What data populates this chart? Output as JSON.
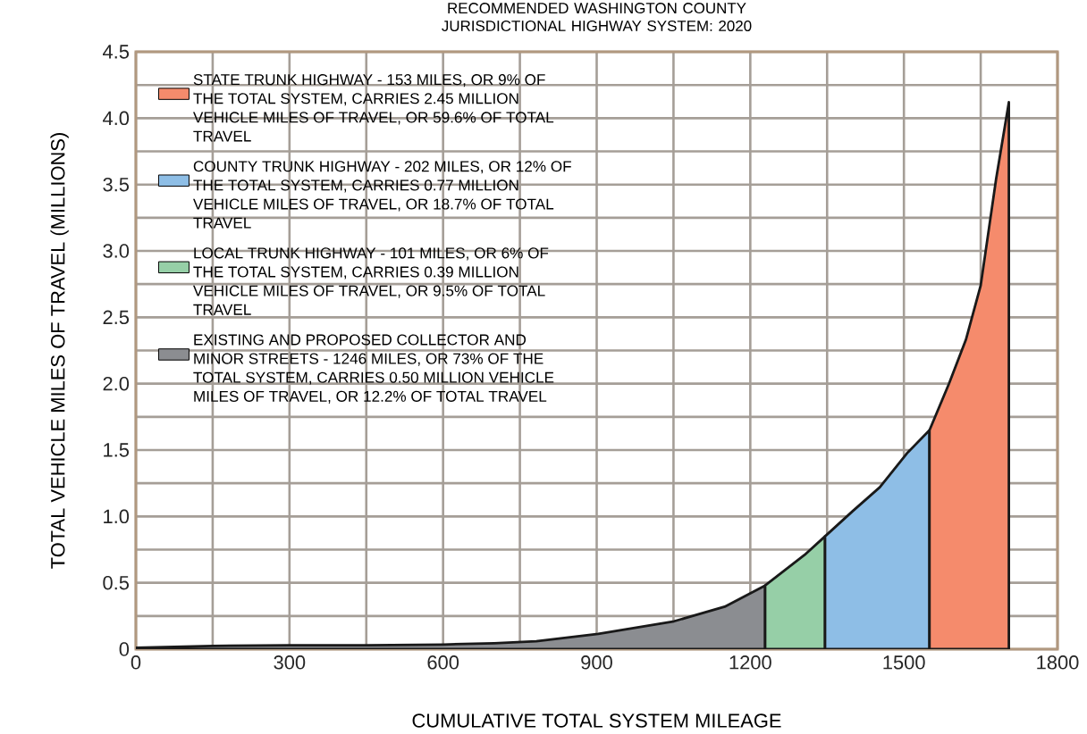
{
  "chart_data": {
    "type": "area",
    "title": "RECOMMENDED WASHINGTON COUNTY JURISDICTIONAL HIGHWAY SYSTEM: 2020",
    "xlabel": "CUMULATIVE TOTAL SYSTEM MILEAGE",
    "ylabel": "TOTAL VEHICLE MILES OF TRAVEL (MILLIONS)",
    "series": [
      {
        "name": "EXISTING AND PROPOSED COLLECTOR AND MINOR STREETS - 1246 MILES, OR 73% OF THE TOTAL SYSTEM, CARRIES 0.50 MILLION VEHICLE MILES OF TRAVEL, OR 12.2% OF TOTAL TRAVEL",
        "color": "#8b8d91",
        "x": [
          0,
          150,
          300,
          450,
          600,
          700,
          782,
          903,
          1051,
          1150,
          1229
        ],
        "values": [
          0.01,
          0.025,
          0.03,
          0.03,
          0.035,
          0.045,
          0.06,
          0.115,
          0.21,
          0.32,
          0.48
        ]
      },
      {
        "name": "LOCAL TRUNK HIGHWAY - 101 MILES, OR 6% OF THE TOTAL SYSTEM, CARRIES 0.39 MILLION VEHICLE MILES OF TRAVEL, OR 9.5% OF TOTAL TRAVEL",
        "color": "#96cfa7",
        "x": [
          1229,
          1306,
          1346
        ],
        "values": [
          0.48,
          0.71,
          0.85
        ]
      },
      {
        "name": "COUNTY TRUNK HIGHWAY - 202 MILES, OR 12% OF THE TOTAL SYSTEM, CARRIES 0.77 MILLION VEHICLE MILES OF TRAVEL, OR 18.7% OF TOTAL TRAVEL",
        "color": "#8ebee6",
        "x": [
          1346,
          1400,
          1453,
          1507,
          1550
        ],
        "values": [
          0.85,
          1.04,
          1.22,
          1.48,
          1.65
        ]
      },
      {
        "name": "STATE TRUNK HIGHWAY - 153 MILES, OR 9% OF THE TOTAL SYSTEM, CARRIES 2.45 MILLION VEHICLE MILES OF TRAVEL, OR 59.6% OF TOTAL TRAVEL",
        "color": "#f58b6c",
        "x": [
          1550,
          1588,
          1621,
          1650,
          1680,
          1705
        ],
        "values": [
          1.65,
          2.0,
          2.33,
          2.74,
          3.54,
          4.12
        ]
      }
    ],
    "xlim": [
      0,
      1800
    ],
    "ylim": [
      0,
      4.5
    ],
    "xticks": [
      0,
      {
        "value": 150,
        "label": null
      },
      300,
      {
        "value": 450,
        "label": null
      },
      600,
      {
        "value": 750,
        "label": null
      },
      900,
      {
        "value": 1050,
        "label": null
      },
      1200,
      {
        "value": 1350,
        "label": null
      },
      1500,
      {
        "value": 1650,
        "label": null
      },
      1800
    ],
    "yticks": [
      {
        "value": 0,
        "label": "0"
      },
      {
        "value": 0.25,
        "label": null
      },
      {
        "value": 0.5,
        "label": "0.5"
      },
      {
        "value": 0.75,
        "label": null
      },
      {
        "value": 1,
        "label": "1.0"
      },
      {
        "value": 1.25,
        "label": null
      },
      {
        "value": 1.5,
        "label": "1.5"
      },
      {
        "value": 1.75,
        "label": null
      },
      {
        "value": 2,
        "label": "2.0"
      },
      {
        "value": 2.25,
        "label": null
      },
      {
        "value": 2.5,
        "label": "2.5"
      },
      {
        "value": 2.75,
        "label": null
      },
      {
        "value": 3,
        "label": "3.0"
      },
      {
        "value": 3.25,
        "label": null
      },
      {
        "value": 3.5,
        "label": "3.5"
      },
      {
        "value": 3.75,
        "label": null
      },
      {
        "value": 4,
        "label": "4.0"
      },
      {
        "value": 4.25,
        "label": null
      },
      {
        "value": 4.5,
        "label": "4.5"
      }
    ],
    "grid": true,
    "legend": "top left"
  }
}
